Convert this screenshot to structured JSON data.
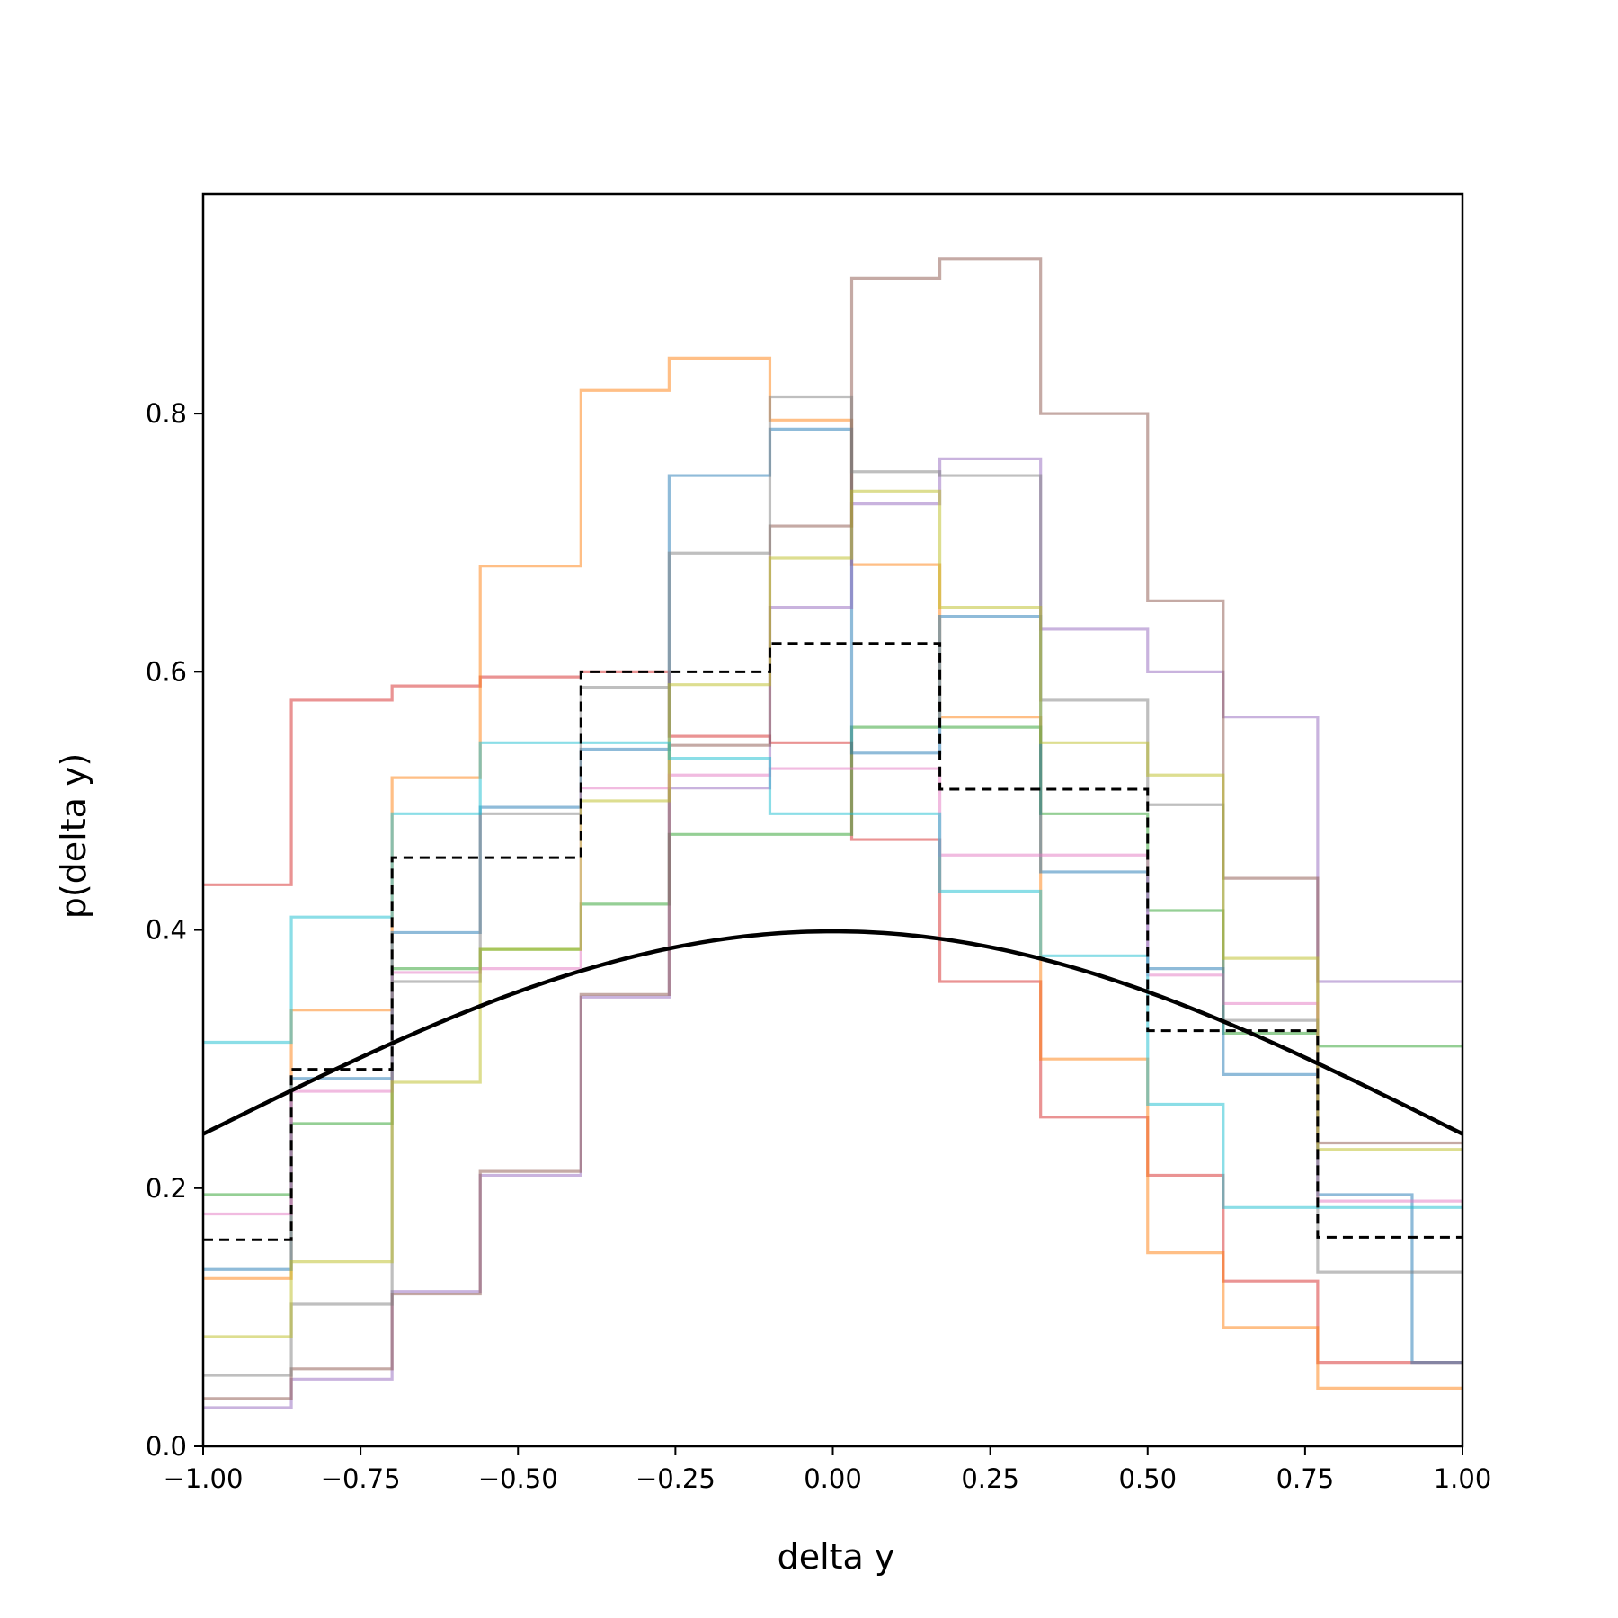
{
  "chart_data": {
    "type": "line",
    "title": "",
    "xlabel": "delta y",
    "ylabel": "p(delta y)",
    "xlim": [
      -1.0,
      1.0
    ],
    "ylim": [
      0.0,
      0.97
    ],
    "grid": false,
    "legend": "none",
    "x_ticks": [
      "−1.00",
      "−0.75",
      "−0.50",
      "−0.25",
      "0.00",
      "0.25",
      "0.50",
      "0.75",
      "1.00"
    ],
    "y_ticks": [
      "0.0",
      "0.2",
      "0.4",
      "0.6",
      "0.8"
    ],
    "bin_edges": [
      -1.0,
      -0.86,
      -0.7,
      -0.56,
      -0.4,
      -0.26,
      -0.1,
      0.03,
      0.17,
      0.33,
      0.5,
      0.62,
      0.77,
      0.92,
      1.0
    ],
    "histograms": [
      {
        "color": "#d62728",
        "values": [
          0.435,
          0.578,
          0.589,
          0.596,
          0.6,
          0.55,
          0.545,
          0.47,
          0.36,
          0.255,
          0.21,
          0.128,
          0.065,
          0.065
        ]
      },
      {
        "color": "#ff7f0e",
        "values": [
          0.13,
          0.338,
          0.518,
          0.682,
          0.818,
          0.843,
          0.795,
          0.683,
          0.565,
          0.3,
          0.15,
          0.092,
          0.045,
          0.045
        ]
      },
      {
        "color": "#2ca02c",
        "values": [
          0.195,
          0.25,
          0.37,
          0.385,
          0.42,
          0.474,
          0.474,
          0.557,
          0.557,
          0.49,
          0.415,
          0.32,
          0.31,
          0.31
        ]
      },
      {
        "color": "#1f77b4",
        "values": [
          0.137,
          0.285,
          0.398,
          0.495,
          0.54,
          0.752,
          0.788,
          0.537,
          0.643,
          0.445,
          0.37,
          0.288,
          0.195,
          0.065
        ]
      },
      {
        "color": "#9467bd",
        "values": [
          0.03,
          0.052,
          0.12,
          0.21,
          0.348,
          0.51,
          0.65,
          0.73,
          0.765,
          0.633,
          0.6,
          0.565,
          0.36,
          0.36
        ]
      },
      {
        "color": "#8c564b",
        "values": [
          0.037,
          0.06,
          0.118,
          0.213,
          0.35,
          0.543,
          0.713,
          0.905,
          0.92,
          0.8,
          0.655,
          0.44,
          0.235,
          0.235
        ]
      },
      {
        "color": "#e377c2",
        "values": [
          0.18,
          0.275,
          0.367,
          0.37,
          0.51,
          0.52,
          0.525,
          0.525,
          0.458,
          0.458,
          0.365,
          0.343,
          0.19,
          0.19
        ]
      },
      {
        "color": "#7f7f7f",
        "values": [
          0.055,
          0.11,
          0.36,
          0.49,
          0.588,
          0.692,
          0.813,
          0.755,
          0.752,
          0.578,
          0.497,
          0.33,
          0.135,
          0.135
        ]
      },
      {
        "color": "#bcbd22",
        "values": [
          0.085,
          0.143,
          0.282,
          0.385,
          0.5,
          0.59,
          0.688,
          0.74,
          0.65,
          0.545,
          0.52,
          0.378,
          0.23,
          0.23
        ]
      },
      {
        "color": "#17becf",
        "values": [
          0.313,
          0.41,
          0.49,
          0.545,
          0.545,
          0.533,
          0.49,
          0.49,
          0.43,
          0.38,
          0.265,
          0.185,
          0.185,
          0.185
        ]
      }
    ],
    "dashed_reference": {
      "color": "#000000",
      "values": [
        0.16,
        0.292,
        0.456,
        0.456,
        0.6,
        0.6,
        0.622,
        0.622,
        0.509,
        0.509,
        0.322,
        0.322,
        0.162,
        0.162
      ]
    },
    "curve": {
      "type": "normal_pdf",
      "mean": 0,
      "sd": 1,
      "color": "#000000"
    }
  }
}
